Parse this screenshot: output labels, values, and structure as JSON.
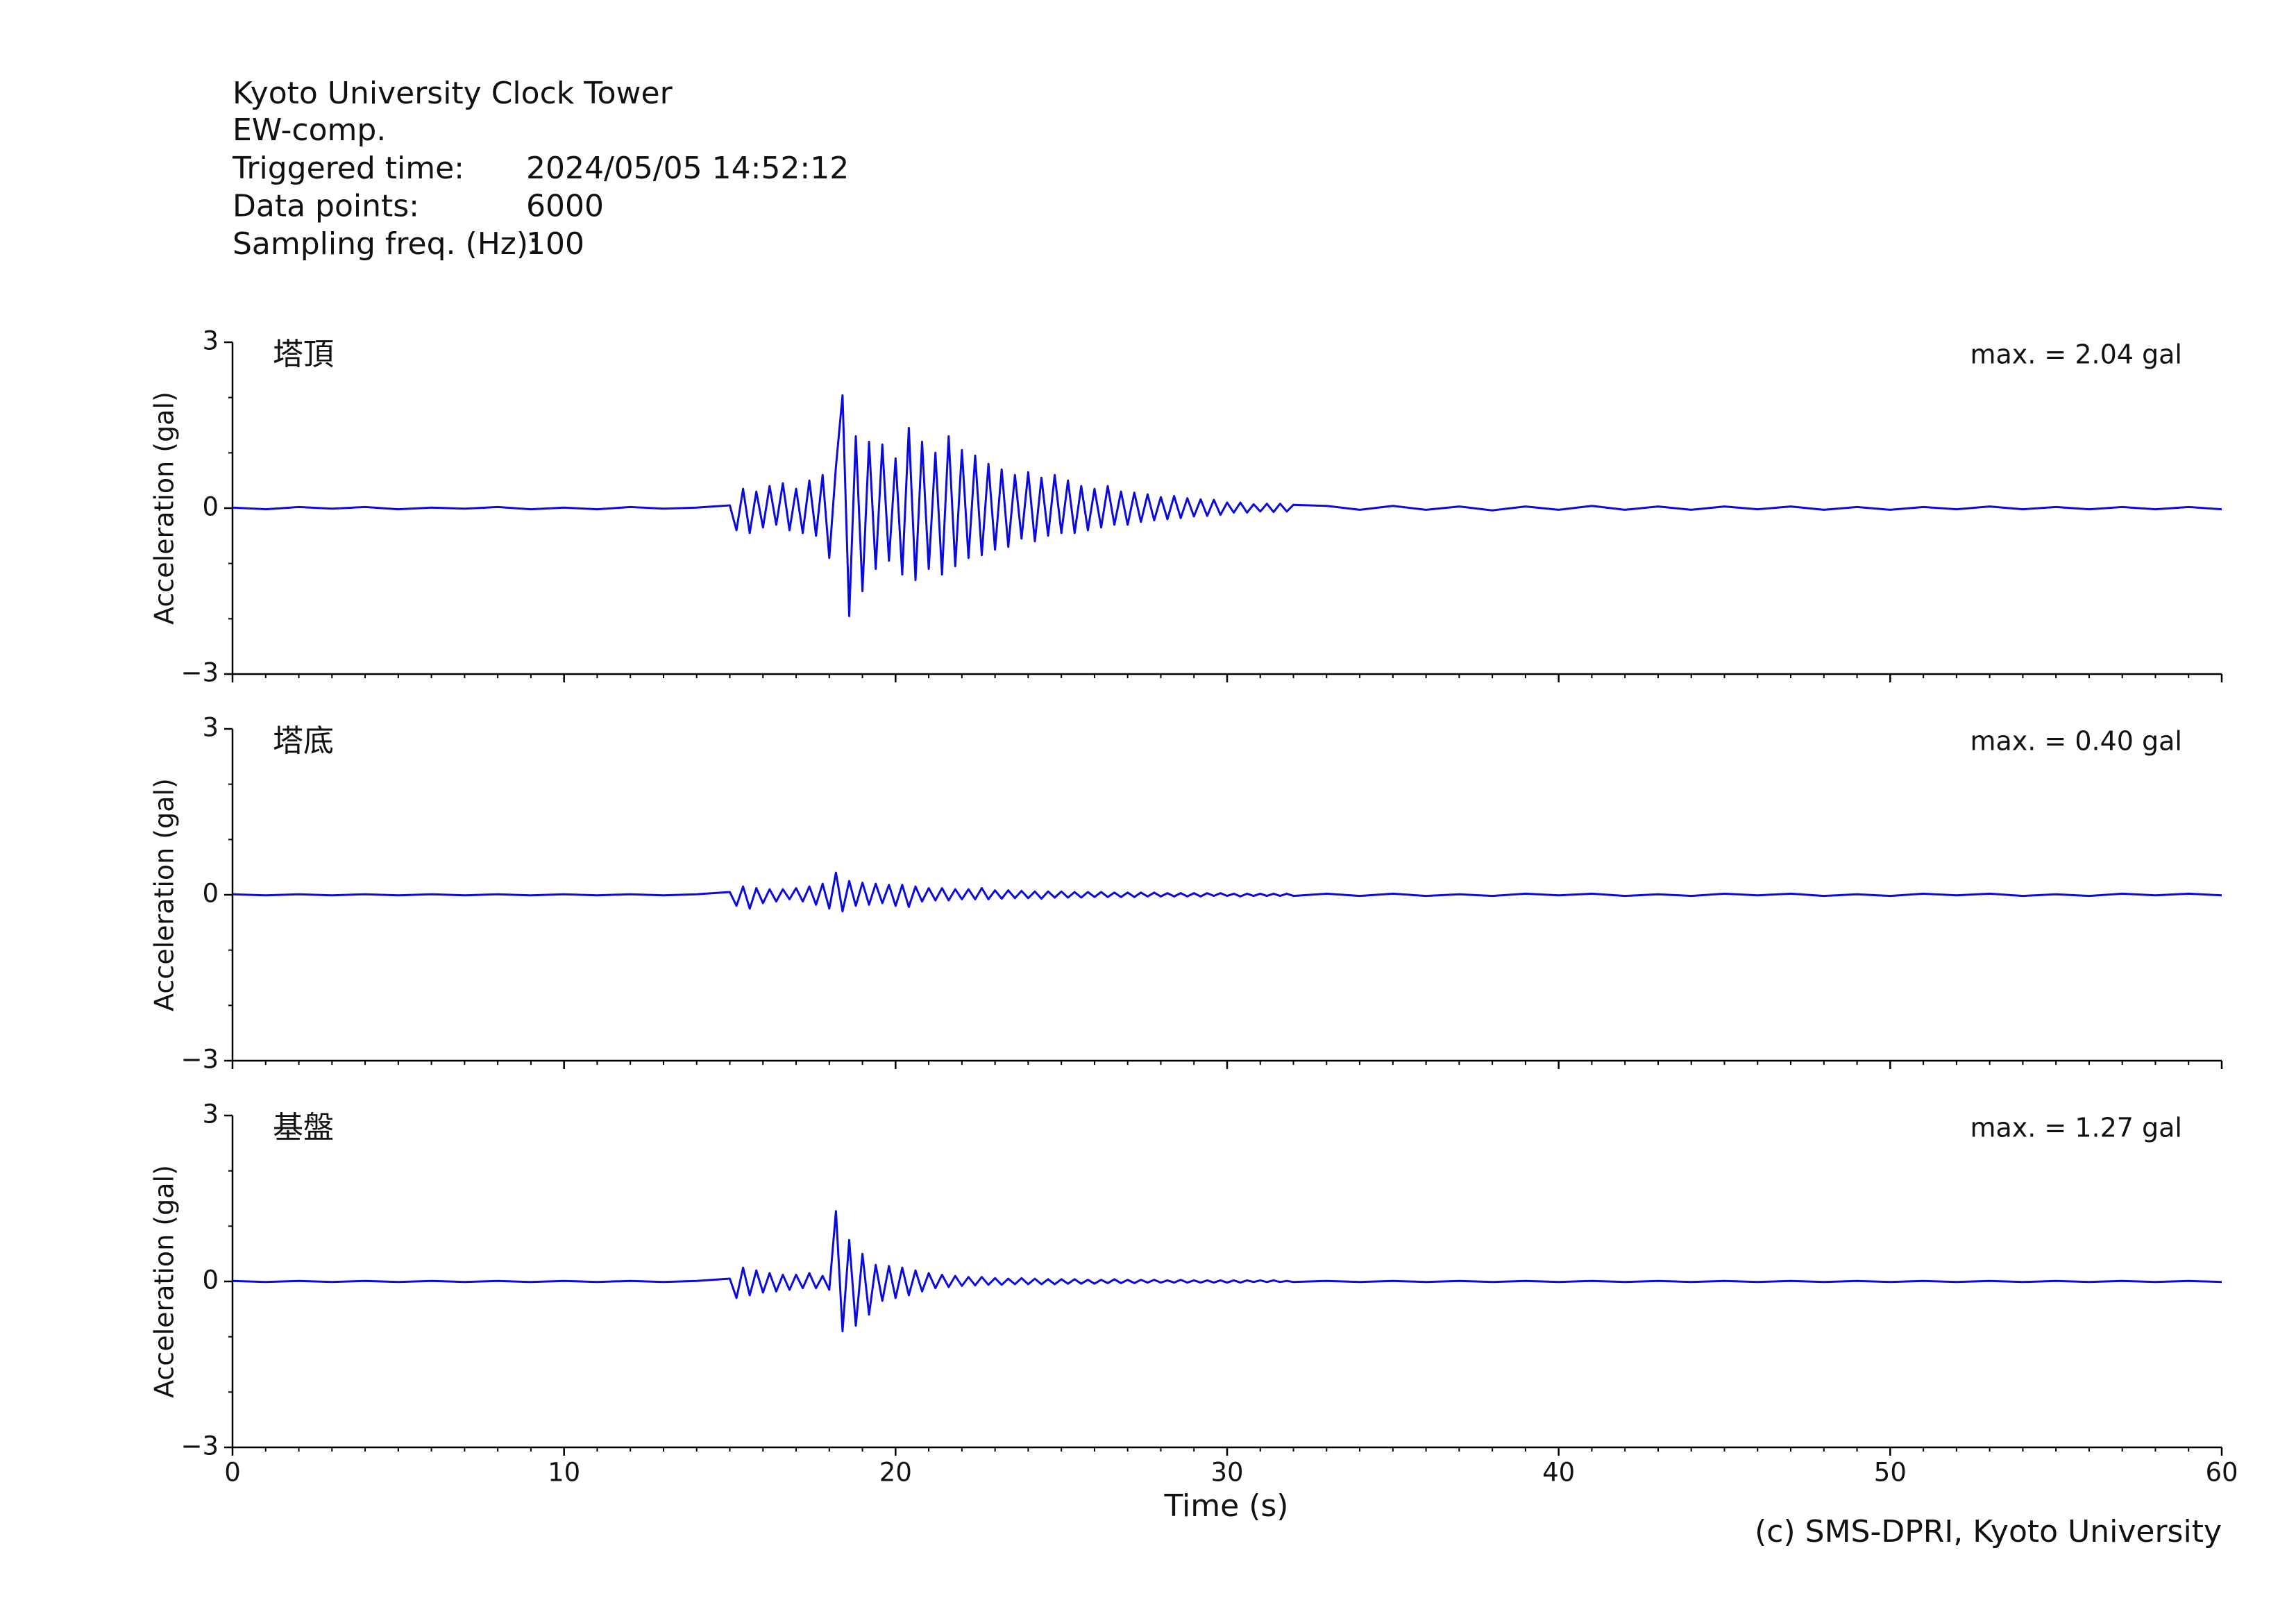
{
  "header": {
    "station": "Kyoto University Clock Tower",
    "component": "EW-comp.",
    "fields": [
      {
        "label": "Triggered time:",
        "value": "2024/05/05 14:52:12"
      },
      {
        "label": "Data points:",
        "value": "6000"
      },
      {
        "label": "Sampling freq. (Hz):",
        "value": "100"
      }
    ]
  },
  "footer": "(c) SMS-DPRI, Kyoto University",
  "chart_data": {
    "type": "line",
    "xlabel": "Time (s)",
    "ylabel": "Acceleration (gal)",
    "xlim": [
      0,
      60
    ],
    "xticks": [
      0,
      10,
      20,
      30,
      40,
      50,
      60
    ],
    "xminor_step": 1,
    "ylim": [
      -3,
      3
    ],
    "yticks": [
      {
        "value": -3,
        "label": "−3"
      },
      0,
      3
    ],
    "yminor_step": 1,
    "x": [
      0,
      1,
      2,
      3,
      4,
      5,
      6,
      7,
      8,
      9,
      10,
      11,
      12,
      13,
      14,
      15,
      15.2,
      15.4,
      15.6,
      15.8,
      16,
      16.2,
      16.4,
      16.6,
      16.8,
      17,
      17.2,
      17.4,
      17.6,
      17.8,
      18,
      18.2,
      18.4,
      18.6,
      18.8,
      19,
      19.2,
      19.4,
      19.6,
      19.8,
      20,
      20.2,
      20.4,
      20.6,
      20.8,
      21,
      21.2,
      21.4,
      21.6,
      21.8,
      22,
      22.2,
      22.4,
      22.6,
      22.8,
      23,
      23.2,
      23.4,
      23.6,
      23.8,
      24,
      24.2,
      24.4,
      24.6,
      24.8,
      25,
      25.2,
      25.4,
      25.6,
      25.8,
      26,
      26.2,
      26.4,
      26.6,
      26.8,
      27,
      27.2,
      27.4,
      27.6,
      27.8,
      28,
      28.2,
      28.4,
      28.6,
      28.8,
      29,
      29.2,
      29.4,
      29.6,
      29.8,
      30,
      30.2,
      30.4,
      30.6,
      30.8,
      31,
      31.2,
      31.4,
      31.6,
      31.8,
      32,
      33,
      34,
      35,
      36,
      37,
      38,
      39,
      40,
      41,
      42,
      43,
      44,
      45,
      46,
      47,
      48,
      49,
      50,
      51,
      52,
      53,
      54,
      55,
      56,
      57,
      58,
      59,
      60
    ],
    "series": [
      {
        "name": "塔頂",
        "color": "#0a0ae0",
        "annotation": "max. = 2.04 gal",
        "values": [
          0.01,
          -0.02,
          0.02,
          -0.01,
          0.02,
          -0.02,
          0.01,
          -0.01,
          0.02,
          -0.02,
          0.01,
          -0.02,
          0.02,
          -0.01,
          0.01,
          0.05,
          -0.4,
          0.35,
          -0.45,
          0.3,
          -0.35,
          0.4,
          -0.3,
          0.45,
          -0.4,
          0.35,
          -0.45,
          0.5,
          -0.5,
          0.6,
          -0.9,
          0.75,
          2.04,
          -1.95,
          1.3,
          -1.5,
          1.2,
          -1.1,
          1.15,
          -0.95,
          0.9,
          -1.2,
          1.45,
          -1.3,
          1.2,
          -1.1,
          1.0,
          -1.2,
          1.3,
          -1.05,
          1.05,
          -0.9,
          0.95,
          -0.85,
          0.8,
          -0.75,
          0.7,
          -0.7,
          0.6,
          -0.55,
          0.65,
          -0.6,
          0.55,
          -0.5,
          0.6,
          -0.45,
          0.5,
          -0.45,
          0.4,
          -0.4,
          0.35,
          -0.35,
          0.4,
          -0.3,
          0.3,
          -0.3,
          0.28,
          -0.25,
          0.25,
          -0.22,
          0.2,
          -0.2,
          0.22,
          -0.18,
          0.18,
          -0.15,
          0.16,
          -0.14,
          0.15,
          -0.12,
          0.1,
          -0.08,
          0.1,
          -0.08,
          0.07,
          -0.06,
          0.08,
          -0.07,
          0.08,
          -0.06,
          0.06,
          0.04,
          -0.03,
          0.04,
          -0.03,
          0.03,
          -0.04,
          0.03,
          -0.03,
          0.04,
          -0.03,
          0.03,
          -0.03,
          0.03,
          -0.02,
          0.03,
          -0.03,
          0.02,
          -0.03,
          0.02,
          -0.02,
          0.03,
          -0.02,
          0.02,
          -0.02,
          0.02,
          -0.02,
          0.02,
          -0.02
        ]
      },
      {
        "name": "塔底",
        "color": "#0a0ae0",
        "annotation": "max. = 0.40 gal",
        "values": [
          0.01,
          -0.01,
          0.01,
          -0.01,
          0.01,
          -0.01,
          0.01,
          -0.01,
          0.01,
          -0.01,
          0.01,
          -0.01,
          0.01,
          -0.01,
          0.01,
          0.05,
          -0.2,
          0.15,
          -0.25,
          0.12,
          -0.15,
          0.1,
          -0.12,
          0.1,
          -0.08,
          0.12,
          -0.12,
          0.15,
          -0.18,
          0.2,
          -0.25,
          0.4,
          -0.3,
          0.25,
          -0.2,
          0.22,
          -0.18,
          0.2,
          -0.15,
          0.18,
          -0.2,
          0.18,
          -0.22,
          0.15,
          -0.12,
          0.12,
          -0.1,
          0.12,
          -0.1,
          0.1,
          -0.08,
          0.1,
          -0.08,
          0.12,
          -0.08,
          0.08,
          -0.07,
          0.08,
          -0.06,
          0.07,
          -0.06,
          0.06,
          -0.07,
          0.06,
          -0.05,
          0.06,
          -0.05,
          0.05,
          -0.05,
          0.05,
          -0.04,
          0.05,
          -0.04,
          0.04,
          -0.04,
          0.04,
          -0.04,
          0.04,
          -0.03,
          0.04,
          -0.03,
          0.03,
          -0.03,
          0.03,
          -0.03,
          0.03,
          -0.03,
          0.03,
          -0.02,
          0.03,
          -0.02,
          0.02,
          -0.03,
          0.02,
          -0.02,
          0.02,
          -0.02,
          0.02,
          -0.02,
          0.02,
          -0.02,
          0.02,
          -0.02,
          0.02,
          -0.02,
          0.01,
          -0.02,
          0.02,
          -0.01,
          0.02,
          -0.02,
          0.01,
          -0.02,
          0.02,
          -0.01,
          0.02,
          -0.02,
          0.01,
          -0.02,
          0.02,
          -0.01,
          0.02,
          -0.02,
          0.01,
          -0.02,
          0.02,
          -0.01,
          0.02,
          -0.01
        ]
      },
      {
        "name": "基盤",
        "color": "#0a0ae0",
        "annotation": "max. = 1.27 gal",
        "values": [
          0.01,
          -0.01,
          0.01,
          -0.01,
          0.01,
          -0.01,
          0.01,
          -0.01,
          0.01,
          -0.01,
          0.01,
          -0.01,
          0.01,
          -0.01,
          0.01,
          0.05,
          -0.3,
          0.25,
          -0.25,
          0.2,
          -0.2,
          0.15,
          -0.18,
          0.12,
          -0.15,
          0.12,
          -0.12,
          0.15,
          -0.12,
          0.1,
          -0.15,
          1.27,
          -0.9,
          0.75,
          -0.8,
          0.5,
          -0.6,
          0.3,
          -0.35,
          0.28,
          -0.3,
          0.25,
          -0.25,
          0.2,
          -0.18,
          0.15,
          -0.12,
          0.12,
          -0.1,
          0.1,
          -0.08,
          0.08,
          -0.07,
          0.08,
          -0.06,
          0.06,
          -0.06,
          0.05,
          -0.05,
          0.06,
          -0.05,
          0.05,
          -0.05,
          0.04,
          -0.05,
          0.04,
          -0.04,
          0.04,
          -0.04,
          0.03,
          -0.04,
          0.03,
          -0.03,
          0.04,
          -0.03,
          0.03,
          -0.03,
          0.03,
          -0.02,
          0.03,
          -0.02,
          0.02,
          -0.02,
          0.03,
          -0.02,
          0.02,
          -0.02,
          0.02,
          -0.02,
          0.02,
          -0.02,
          0.02,
          -0.02,
          0.02,
          -0.01,
          0.02,
          -0.01,
          0.02,
          -0.01,
          0.01,
          -0.01,
          0.01,
          -0.01,
          0.01,
          -0.01,
          0.01,
          -0.01,
          0.01,
          -0.01,
          0.01,
          -0.01,
          0.01,
          -0.01,
          0.01,
          -0.01,
          0.01,
          -0.01,
          0.01,
          -0.01,
          0.01,
          -0.01,
          0.01,
          -0.01,
          0.01,
          -0.01,
          0.01,
          -0.01,
          0.01,
          -0.01
        ]
      }
    ]
  }
}
